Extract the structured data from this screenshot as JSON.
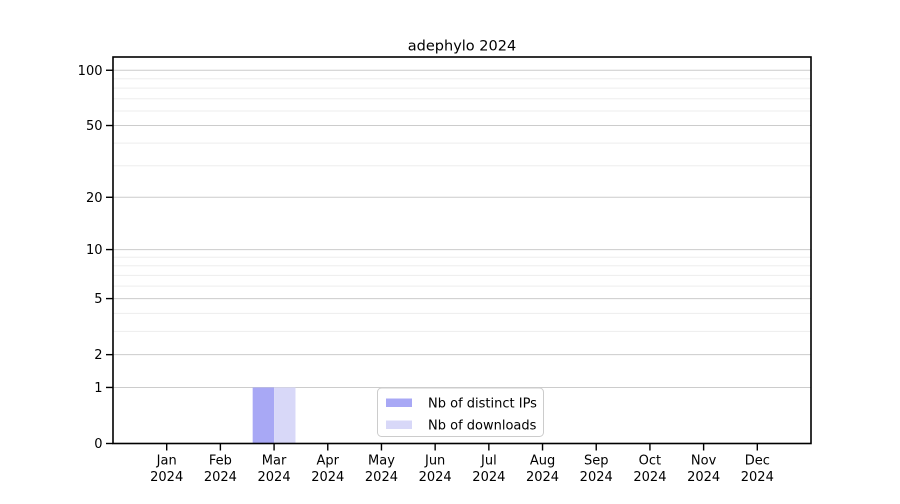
{
  "chart_data": {
    "type": "bar",
    "title": "adephylo 2024",
    "categories": [
      "Jan 2024",
      "Feb 2024",
      "Mar 2024",
      "Apr 2024",
      "May 2024",
      "Jun 2024",
      "Jul 2024",
      "Aug 2024",
      "Sep 2024",
      "Oct 2024",
      "Nov 2024",
      "Dec 2024"
    ],
    "series": [
      {
        "name": "Nb of distinct IPs",
        "color": "#a8a8f5",
        "values": [
          0,
          0,
          1,
          0,
          0,
          0,
          0,
          0,
          0,
          0,
          0,
          0
        ]
      },
      {
        "name": "Nb of downloads",
        "color": "#d8d8f8",
        "values": [
          0,
          0,
          1,
          0,
          0,
          0,
          0,
          0,
          0,
          0,
          0,
          0
        ]
      }
    ],
    "xlabel": "",
    "ylabel": "",
    "yscale": "log1p",
    "ylim": [
      0,
      118
    ],
    "y_ticks": [
      0,
      1,
      2,
      5,
      10,
      20,
      50,
      100
    ],
    "y_minor_gridlines": [
      3,
      4,
      6,
      7,
      8,
      9,
      30,
      40,
      60,
      70,
      80,
      90
    ],
    "grid": true,
    "legend": {
      "position": "bottom-center-inside",
      "entries": [
        "Nb of distinct IPs",
        "Nb of downloads"
      ]
    },
    "colors": {
      "major_grid": "#cccccc",
      "minor_grid": "#ededed",
      "axis": "#000000",
      "background": "#ffffff",
      "legend_border": "#cccccc",
      "legend_background": "#ffffff"
    }
  }
}
